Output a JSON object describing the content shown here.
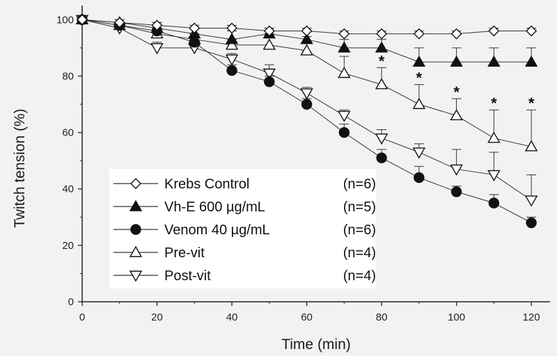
{
  "chart_data": {
    "type": "line",
    "xlabel": "Time (min)",
    "ylabel": "Twitch tension (%)",
    "xlim": [
      0,
      125
    ],
    "ylim": [
      0,
      105
    ],
    "xticks": [
      "0",
      "20",
      "40",
      "60",
      "80",
      "100",
      "120"
    ],
    "yticks": [
      "0",
      "20",
      "40",
      "60",
      "80",
      "100"
    ],
    "legend_position": "bottom-left",
    "x": [
      0,
      10,
      20,
      30,
      40,
      50,
      60,
      70,
      80,
      90,
      100,
      110,
      120
    ],
    "series": [
      {
        "name": "Krebs Control",
        "n": "(n=6)",
        "marker": "diamond-open",
        "values": [
          100,
          99,
          98,
          97,
          97,
          96,
          96,
          95,
          95,
          95,
          95,
          96,
          96
        ],
        "error_upper": [
          0,
          1,
          1,
          1,
          1,
          1,
          1,
          1,
          1,
          1,
          1,
          1,
          1
        ]
      },
      {
        "name": "Vh-E 600 µg/mL",
        "n": "(n=5)",
        "marker": "triangle-up-filled",
        "values": [
          100,
          99,
          97,
          95,
          93,
          95,
          93,
          90,
          90,
          85,
          85,
          85,
          85
        ],
        "error_upper": [
          0,
          1,
          2,
          2,
          3,
          2,
          3,
          3,
          3,
          5,
          5,
          5,
          5
        ]
      },
      {
        "name": "Venom 40 µg/mL",
        "n": "(n=6)",
        "marker": "circle-filled",
        "values": [
          100,
          98,
          96,
          92,
          82,
          78,
          70,
          60,
          51,
          44,
          39,
          35,
          28
        ],
        "error_upper": [
          0,
          1,
          2,
          2,
          2,
          2,
          2,
          3,
          3,
          4,
          2,
          3,
          2
        ]
      },
      {
        "name": "Pre-vit",
        "n": "(n=4)",
        "marker": "triangle-up-open",
        "values": [
          100,
          98,
          95,
          93,
          91,
          91,
          89,
          81,
          77,
          70,
          66,
          58,
          55
        ],
        "error_upper": [
          0,
          1,
          2,
          2,
          2,
          4,
          5,
          6,
          6,
          7,
          6,
          10,
          13
        ]
      },
      {
        "name": "Post-vit",
        "n": "(n=4)",
        "marker": "triangle-down-open",
        "values": [
          100,
          97,
          90,
          90,
          86,
          81,
          74,
          66,
          58,
          53,
          47,
          45,
          36
        ],
        "error_upper": [
          0,
          1,
          2,
          2,
          2,
          3,
          2,
          2,
          3,
          3,
          7,
          8,
          9
        ]
      }
    ],
    "significance": {
      "label": "*",
      "x": [
        80,
        90,
        100,
        110,
        120
      ]
    }
  }
}
